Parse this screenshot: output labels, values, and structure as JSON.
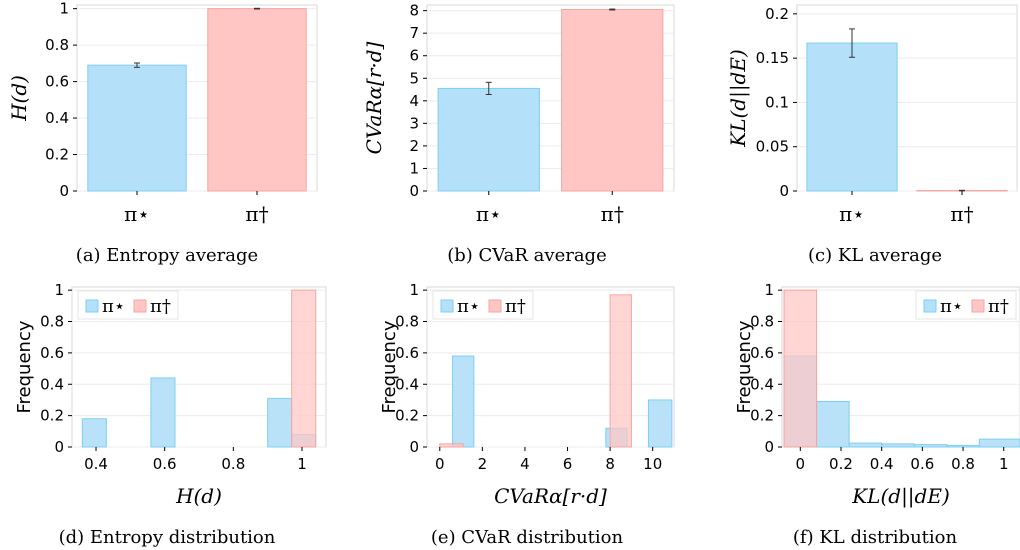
{
  "colors": {
    "pi_star": "#b5e0f9",
    "pi_star_edge": "#7ccff3",
    "pi_dagger": "#ffc6c3",
    "pi_dagger_edge": "#f7a4a0"
  },
  "legend": {
    "pi_star": "π⋆",
    "pi_dagger": "π†"
  },
  "chart_data": [
    {
      "id": "a",
      "type": "bar",
      "caption": "(a) Entropy average",
      "ylabel": "H(d)",
      "categories": [
        "π⋆",
        "π†"
      ],
      "values": [
        0.69,
        1.0
      ],
      "errors": [
        0.012,
        0.002
      ],
      "ylim": [
        0,
        1.02
      ],
      "yticks": [
        0,
        0.2,
        0.4,
        0.6,
        0.8,
        1
      ],
      "ytick_labels": [
        "0",
        "0.2",
        "0.4",
        "0.6",
        "0.8",
        "1"
      ],
      "grid": true
    },
    {
      "id": "b",
      "type": "bar",
      "caption": "(b) CVaR average",
      "ylabel": "CVaRα[r·d]",
      "categories": [
        "π⋆",
        "π†"
      ],
      "values": [
        4.55,
        8.05
      ],
      "errors": [
        0.27,
        0.02
      ],
      "ylim": [
        0,
        8.25
      ],
      "yticks": [
        0,
        1,
        2,
        3,
        4,
        5,
        6,
        7,
        8
      ],
      "ytick_labels": [
        "0",
        "1",
        "2",
        "3",
        "4",
        "5",
        "6",
        "7",
        "8"
      ],
      "grid": true
    },
    {
      "id": "c",
      "type": "bar",
      "caption": "(c) KL average",
      "ylabel": "KL(d||dE)",
      "categories": [
        "π⋆",
        "π†"
      ],
      "values": [
        0.167,
        0.0005
      ],
      "errors": [
        0.016,
        0.0003
      ],
      "ylim": [
        0,
        0.21
      ],
      "yticks": [
        0,
        0.05,
        0.1,
        0.15,
        0.2
      ],
      "ytick_labels": [
        "0",
        "0.05",
        "0.1",
        "0.15",
        "0.2"
      ],
      "grid": true
    },
    {
      "id": "d",
      "type": "bar",
      "caption": "(d) Entropy distribution",
      "ylabel": "Frequency",
      "xlabel": "H(d)",
      "xlim": [
        0.33,
        1.07
      ],
      "xticks": [
        0.4,
        0.6,
        0.8,
        1
      ],
      "xtick_labels": [
        "0.4",
        "0.6",
        "0.8",
        "1"
      ],
      "ylim": [
        0,
        1.02
      ],
      "yticks": [
        0,
        0.2,
        0.4,
        0.6,
        0.8,
        1
      ],
      "ytick_labels": [
        "0",
        "0.2",
        "0.4",
        "0.6",
        "0.8",
        "1"
      ],
      "legend_position": "top-left",
      "series": [
        {
          "name": "π⋆",
          "bins": [
            [
              0.36,
              0.43,
              0.18
            ],
            [
              0.56,
              0.63,
              0.44
            ],
            [
              0.9,
              0.97,
              0.31
            ],
            [
              0.97,
              1.04,
              0.08
            ]
          ]
        },
        {
          "name": "π†",
          "bins": [
            [
              0.97,
              1.04,
              1.0
            ]
          ]
        }
      ]
    },
    {
      "id": "e",
      "type": "bar",
      "caption": "(e) CVaR distribution",
      "ylabel": "Frequency",
      "xlabel": "CVaRα[r·d]",
      "xlim": [
        -0.6,
        11.0
      ],
      "xticks": [
        0,
        2,
        4,
        6,
        8,
        10
      ],
      "xtick_labels": [
        "0",
        "2",
        "4",
        "6",
        "8",
        "10"
      ],
      "ylim": [
        0,
        1.02
      ],
      "yticks": [
        0,
        0.2,
        0.4,
        0.6,
        0.8,
        1
      ],
      "ytick_labels": [
        "0",
        "0.2",
        "0.4",
        "0.6",
        "0.8",
        "1"
      ],
      "legend_position": "top-left",
      "series": [
        {
          "name": "π⋆",
          "bins": [
            [
              0.6,
              1.6,
              0.58
            ],
            [
              7.8,
              8.8,
              0.12
            ],
            [
              9.8,
              10.9,
              0.3
            ]
          ]
        },
        {
          "name": "π†",
          "bins": [
            [
              0.0,
              1.1,
              0.02
            ],
            [
              8.0,
              9.0,
              0.97
            ]
          ]
        }
      ]
    },
    {
      "id": "f",
      "type": "bar",
      "caption": "(f) KL distribution",
      "ylabel": "Frequency",
      "xlabel": "KL(d||dE)",
      "xlim": [
        -0.09,
        1.08
      ],
      "xticks": [
        0,
        0.2,
        0.4,
        0.6,
        0.8,
        1
      ],
      "xtick_labels": [
        "0",
        "0.2",
        "0.4",
        "0.6",
        "0.8",
        "1"
      ],
      "ylim": [
        0,
        1.02
      ],
      "yticks": [
        0,
        0.2,
        0.4,
        0.6,
        0.8,
        1
      ],
      "ytick_labels": [
        "0",
        "0.2",
        "0.4",
        "0.6",
        "0.8",
        "1"
      ],
      "legend_position": "top-right",
      "series": [
        {
          "name": "π⋆",
          "bins": [
            [
              -0.08,
              0.08,
              0.58
            ],
            [
              0.08,
              0.24,
              0.29
            ],
            [
              0.24,
              0.4,
              0.025
            ],
            [
              0.4,
              0.56,
              0.02
            ],
            [
              0.56,
              0.72,
              0.015
            ],
            [
              0.72,
              0.88,
              0.01
            ],
            [
              0.88,
              1.08,
              0.05
            ]
          ]
        },
        {
          "name": "π†",
          "bins": [
            [
              -0.08,
              0.08,
              1.0
            ]
          ]
        }
      ]
    }
  ]
}
